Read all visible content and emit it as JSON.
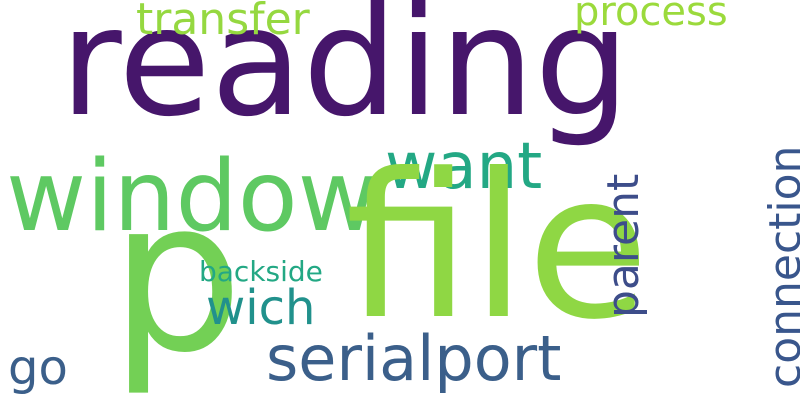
{
  "words": {
    "reading": "reading",
    "file": "file",
    "p": "p",
    "window": "window",
    "serialport": "serialport",
    "want": "want",
    "connection": "connection",
    "parent": "parent",
    "transfer": "transfer",
    "process": "process",
    "wich": "wich",
    "backside": "backside",
    "go": "go"
  },
  "colors": {
    "reading": "#46166b",
    "file": "#8fd744",
    "p": "#73d055",
    "window": "#5ec962",
    "serialport": "#3b5f8a",
    "want": "#23a884",
    "connection": "#39568c",
    "parent": "#3d4d8a",
    "transfer": "#95d840",
    "process": "#9bda3c",
    "wich": "#21918c",
    "backside": "#23a884",
    "go": "#3b5f8a",
    "background": "#ffffff"
  }
}
